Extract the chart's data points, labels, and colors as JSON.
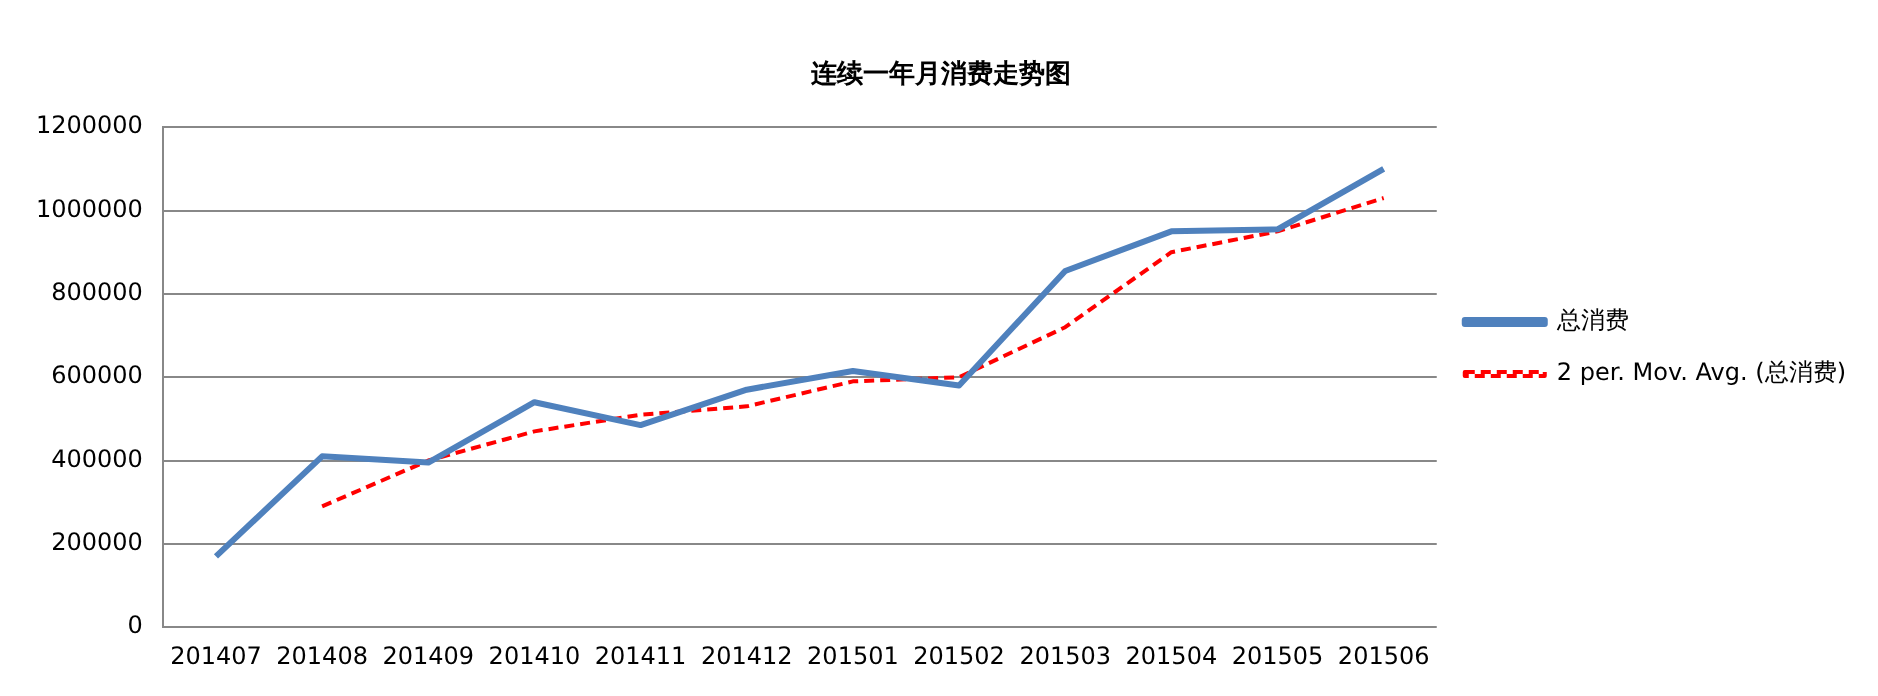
{
  "chart_data": {
    "type": "line",
    "title": "连续一年月消费走势图",
    "categories": [
      "201407",
      "201408",
      "201409",
      "201410",
      "201411",
      "201412",
      "201501",
      "201502",
      "201503",
      "201504",
      "201505",
      "201506"
    ],
    "series": [
      {
        "name": "总消费",
        "color": "#4f81bd",
        "line_style": "solid",
        "values": [
          170000,
          410000,
          395000,
          540000,
          485000,
          570000,
          615000,
          580000,
          855000,
          950000,
          955000,
          1100000
        ]
      },
      {
        "name": "2 per. Mov. Avg. (总消费)",
        "color": "#ff0000",
        "line_style": "dashed",
        "values": [
          null,
          290000,
          400000,
          470000,
          510000,
          530000,
          590000,
          600000,
          720000,
          900000,
          950000,
          1030000
        ]
      }
    ],
    "ylim": [
      0,
      1200000
    ],
    "yticks": [
      0,
      200000,
      400000,
      600000,
      800000,
      1000000,
      1200000
    ],
    "grid": "y",
    "legend": "right",
    "marker": "none"
  }
}
